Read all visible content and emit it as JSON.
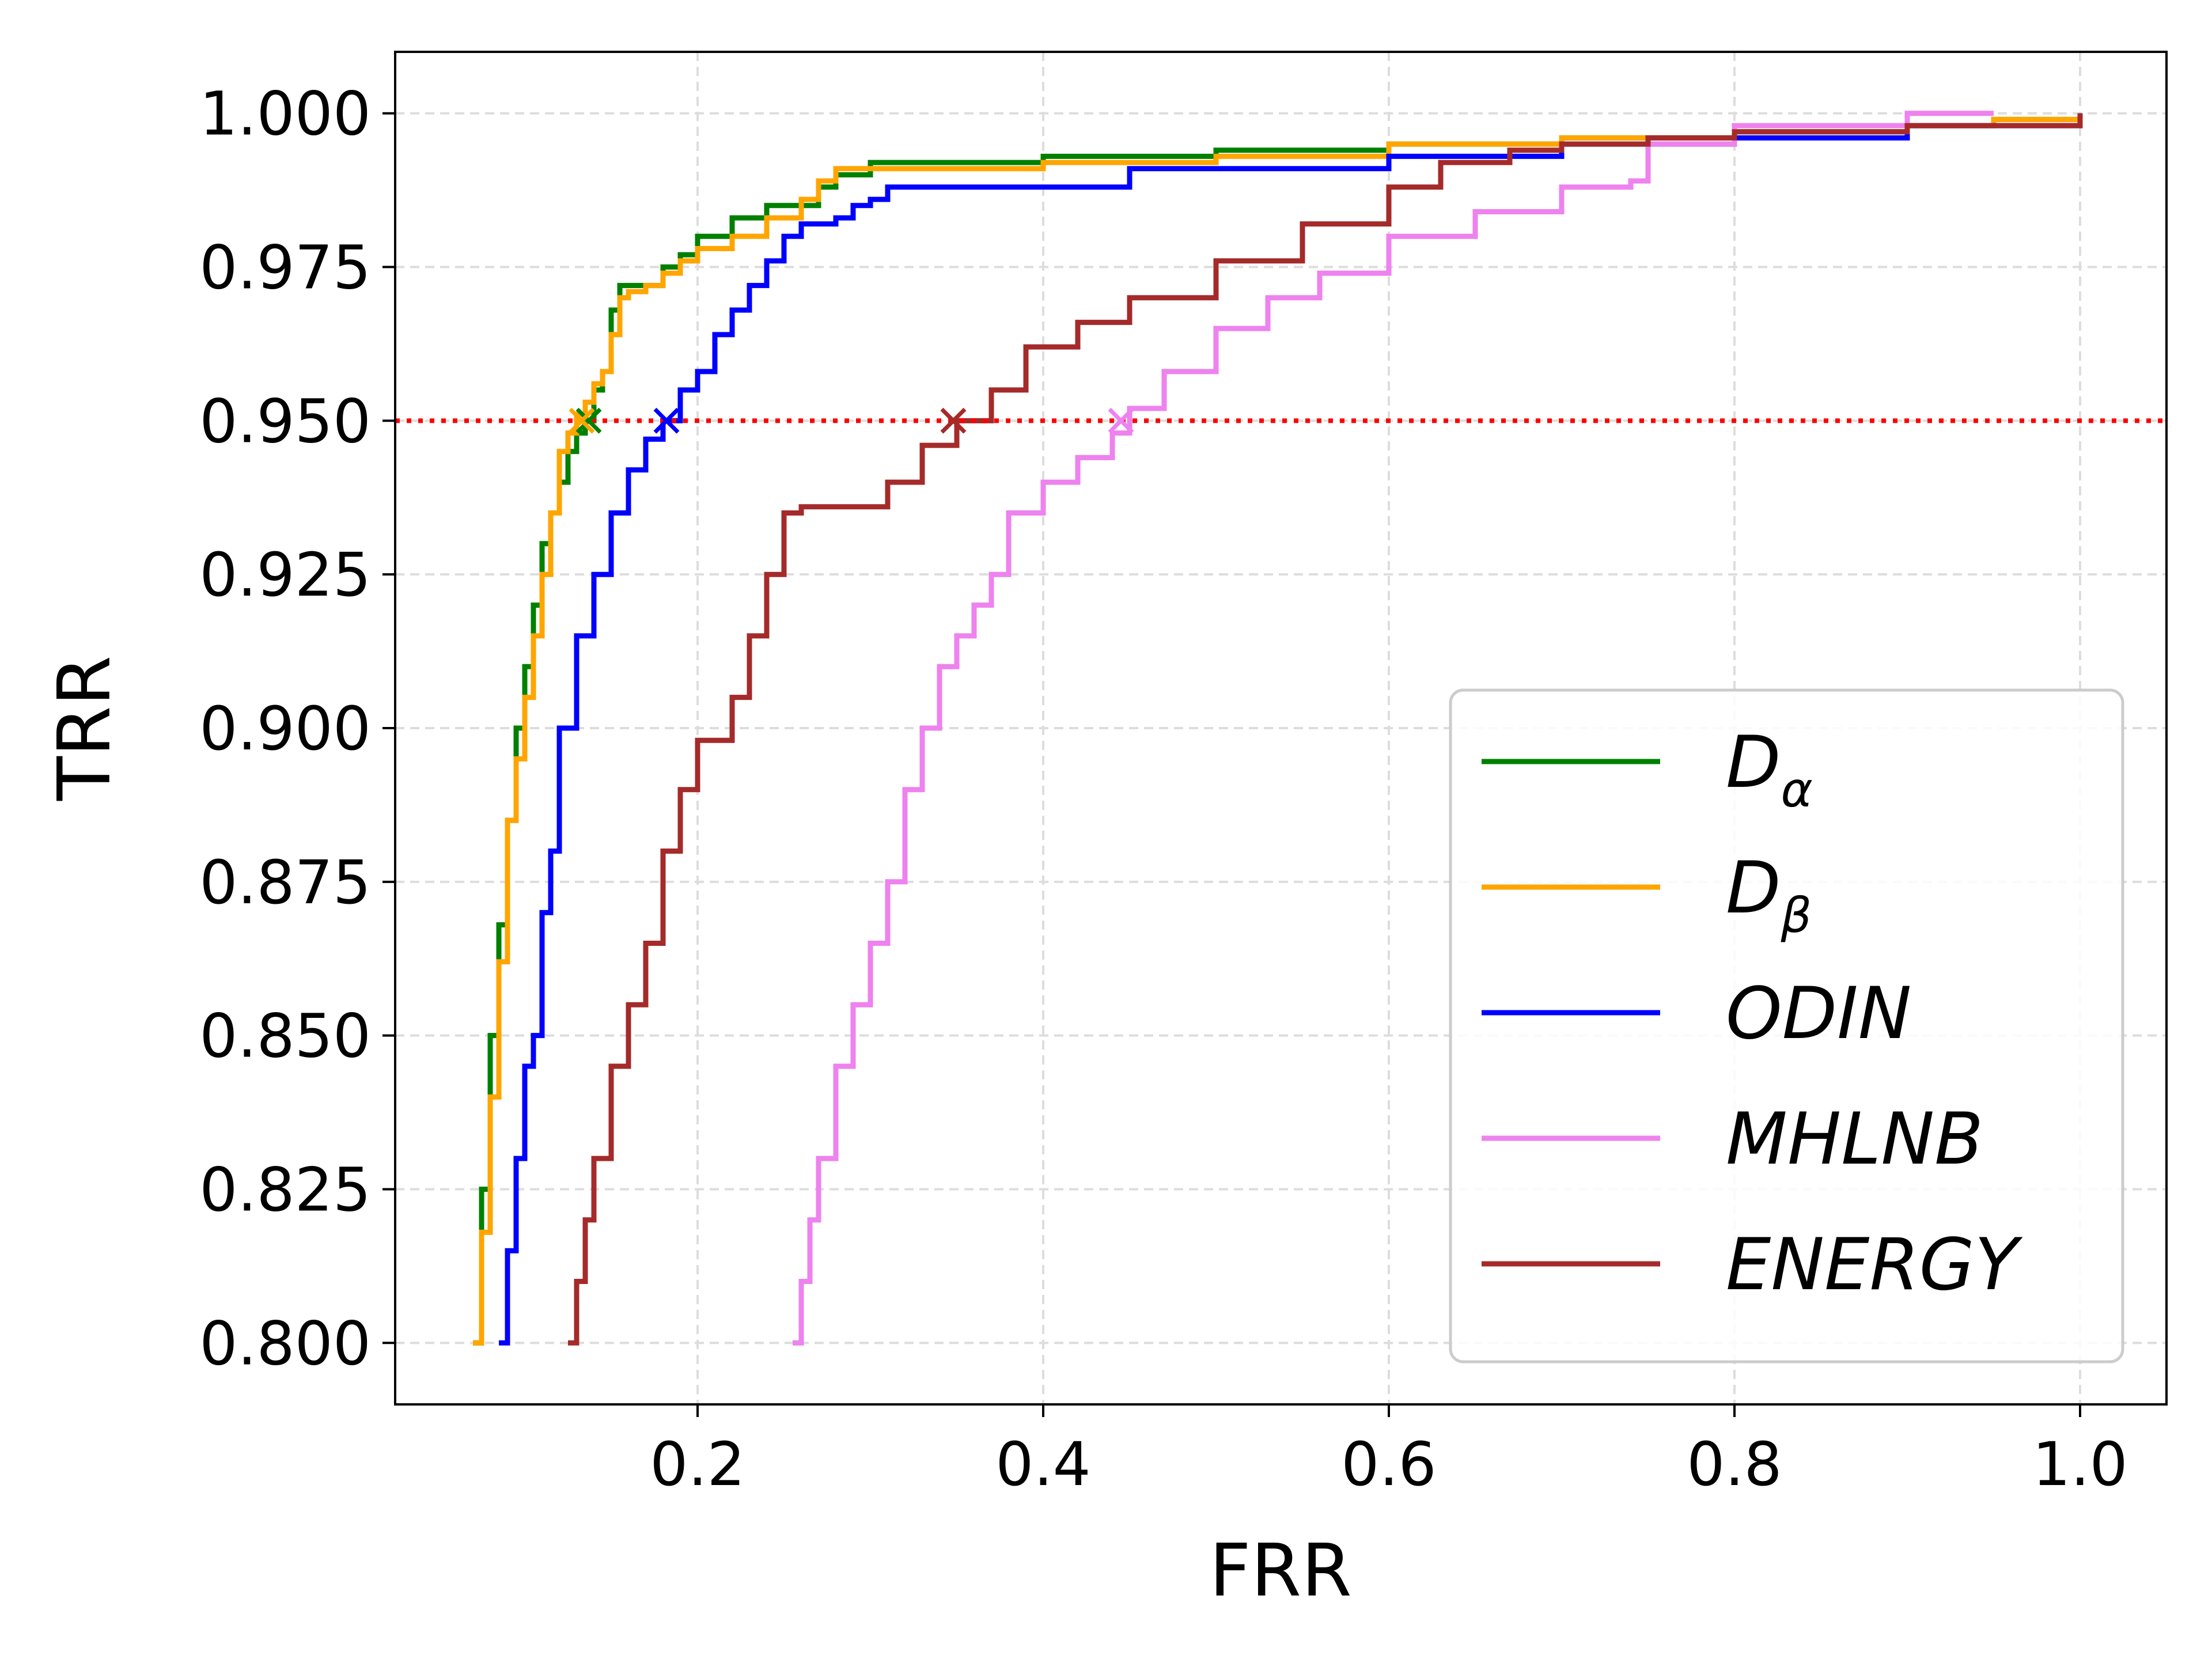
{
  "chart_data": {
    "type": "line",
    "title": "",
    "xlabel": "FRR",
    "ylabel": "TRR",
    "xlim": [
      0.025,
      1.05
    ],
    "ylim": [
      0.79,
      1.01
    ],
    "xticks": [
      "0.2",
      "0.4",
      "0.6",
      "0.8",
      "1.0"
    ],
    "yticks": [
      "0.800",
      "0.825",
      "0.850",
      "0.875",
      "0.900",
      "0.925",
      "0.950",
      "0.975",
      "1.000"
    ],
    "grid": true,
    "legend_position": "lower-right",
    "reference_line": {
      "y": 0.95,
      "color": "#ff0000",
      "style": "dotted"
    },
    "series": [
      {
        "name": "D",
        "subscript": "α",
        "color": "#008000",
        "marker": {
          "x": 0.137,
          "y": 0.95
        },
        "x": [
          0.07,
          0.075,
          0.08,
          0.085,
          0.09,
          0.095,
          0.1,
          0.105,
          0.11,
          0.115,
          0.12,
          0.125,
          0.13,
          0.135,
          0.14,
          0.145,
          0.15,
          0.155,
          0.16,
          0.17,
          0.18,
          0.19,
          0.2,
          0.22,
          0.24,
          0.26,
          0.27,
          0.28,
          0.3,
          0.32,
          0.4,
          0.5,
          0.6,
          0.7,
          0.8,
          0.9,
          0.95,
          1.0
        ],
        "y": [
          0.8,
          0.825,
          0.85,
          0.868,
          0.885,
          0.9,
          0.91,
          0.92,
          0.93,
          0.935,
          0.94,
          0.945,
          0.948,
          0.95,
          0.955,
          0.958,
          0.968,
          0.972,
          0.972,
          0.972,
          0.975,
          0.977,
          0.98,
          0.983,
          0.985,
          0.985,
          0.988,
          0.99,
          0.992,
          0.992,
          0.993,
          0.994,
          0.995,
          0.996,
          0.997,
          0.998,
          0.999,
          1.0
        ]
      },
      {
        "name": "D",
        "subscript": "β",
        "color": "#ffa500",
        "marker": {
          "x": 0.133,
          "y": 0.95
        },
        "x": [
          0.07,
          0.075,
          0.08,
          0.085,
          0.09,
          0.095,
          0.1,
          0.105,
          0.11,
          0.115,
          0.12,
          0.125,
          0.13,
          0.135,
          0.14,
          0.145,
          0.15,
          0.155,
          0.16,
          0.17,
          0.18,
          0.19,
          0.2,
          0.22,
          0.24,
          0.26,
          0.27,
          0.28,
          0.3,
          0.32,
          0.4,
          0.5,
          0.6,
          0.7,
          0.8,
          0.9,
          0.95,
          1.0
        ],
        "y": [
          0.8,
          0.818,
          0.84,
          0.862,
          0.885,
          0.895,
          0.905,
          0.915,
          0.925,
          0.935,
          0.945,
          0.948,
          0.951,
          0.953,
          0.956,
          0.958,
          0.964,
          0.97,
          0.971,
          0.972,
          0.974,
          0.976,
          0.978,
          0.98,
          0.983,
          0.986,
          0.989,
          0.991,
          0.991,
          0.991,
          0.992,
          0.993,
          0.995,
          0.996,
          0.997,
          0.998,
          0.999,
          1.0
        ]
      },
      {
        "name": "ODIN",
        "color": "#0000ff",
        "marker": {
          "x": 0.182,
          "y": 0.95
        },
        "x": [
          0.085,
          0.09,
          0.095,
          0.1,
          0.105,
          0.11,
          0.115,
          0.12,
          0.13,
          0.14,
          0.15,
          0.16,
          0.17,
          0.18,
          0.19,
          0.2,
          0.21,
          0.22,
          0.23,
          0.24,
          0.25,
          0.26,
          0.27,
          0.28,
          0.29,
          0.3,
          0.31,
          0.38,
          0.45,
          0.6,
          0.7,
          0.8,
          0.9,
          1.0
        ],
        "y": [
          0.8,
          0.815,
          0.83,
          0.845,
          0.85,
          0.87,
          0.88,
          0.9,
          0.915,
          0.925,
          0.935,
          0.942,
          0.947,
          0.95,
          0.955,
          0.958,
          0.964,
          0.968,
          0.972,
          0.976,
          0.98,
          0.982,
          0.982,
          0.983,
          0.985,
          0.986,
          0.988,
          0.988,
          0.991,
          0.993,
          0.995,
          0.996,
          0.998,
          1.0
        ]
      },
      {
        "name": "MHLNB",
        "color": "#ee82ee",
        "marker": {
          "x": 0.445,
          "y": 0.95
        },
        "x": [
          0.255,
          0.26,
          0.265,
          0.27,
          0.28,
          0.29,
          0.3,
          0.31,
          0.32,
          0.33,
          0.34,
          0.35,
          0.36,
          0.37,
          0.38,
          0.4,
          0.42,
          0.44,
          0.45,
          0.47,
          0.5,
          0.53,
          0.56,
          0.6,
          0.65,
          0.7,
          0.74,
          0.75,
          0.8,
          0.9,
          0.95
        ],
        "y": [
          0.8,
          0.81,
          0.82,
          0.83,
          0.845,
          0.855,
          0.865,
          0.875,
          0.89,
          0.9,
          0.91,
          0.915,
          0.92,
          0.925,
          0.935,
          0.94,
          0.944,
          0.948,
          0.952,
          0.958,
          0.965,
          0.97,
          0.974,
          0.98,
          0.984,
          0.988,
          0.989,
          0.995,
          0.998,
          1.0,
          1.0
        ]
      },
      {
        "name": "ENERGY",
        "color": "#a52a2a",
        "marker": {
          "x": 0.348,
          "y": 0.95
        },
        "x": [
          0.125,
          0.13,
          0.135,
          0.14,
          0.15,
          0.16,
          0.17,
          0.18,
          0.19,
          0.2,
          0.21,
          0.22,
          0.23,
          0.24,
          0.25,
          0.26,
          0.27,
          0.31,
          0.33,
          0.35,
          0.37,
          0.39,
          0.42,
          0.45,
          0.5,
          0.55,
          0.6,
          0.63,
          0.67,
          0.7,
          0.75,
          0.8,
          0.9,
          0.95,
          1.0
        ],
        "y": [
          0.8,
          0.81,
          0.82,
          0.83,
          0.845,
          0.855,
          0.865,
          0.88,
          0.89,
          0.898,
          0.898,
          0.905,
          0.915,
          0.925,
          0.935,
          0.936,
          0.936,
          0.94,
          0.946,
          0.95,
          0.955,
          0.962,
          0.966,
          0.97,
          0.976,
          0.982,
          0.988,
          0.992,
          0.994,
          0.995,
          0.996,
          0.997,
          0.998,
          0.998,
          1.0
        ]
      }
    ]
  }
}
